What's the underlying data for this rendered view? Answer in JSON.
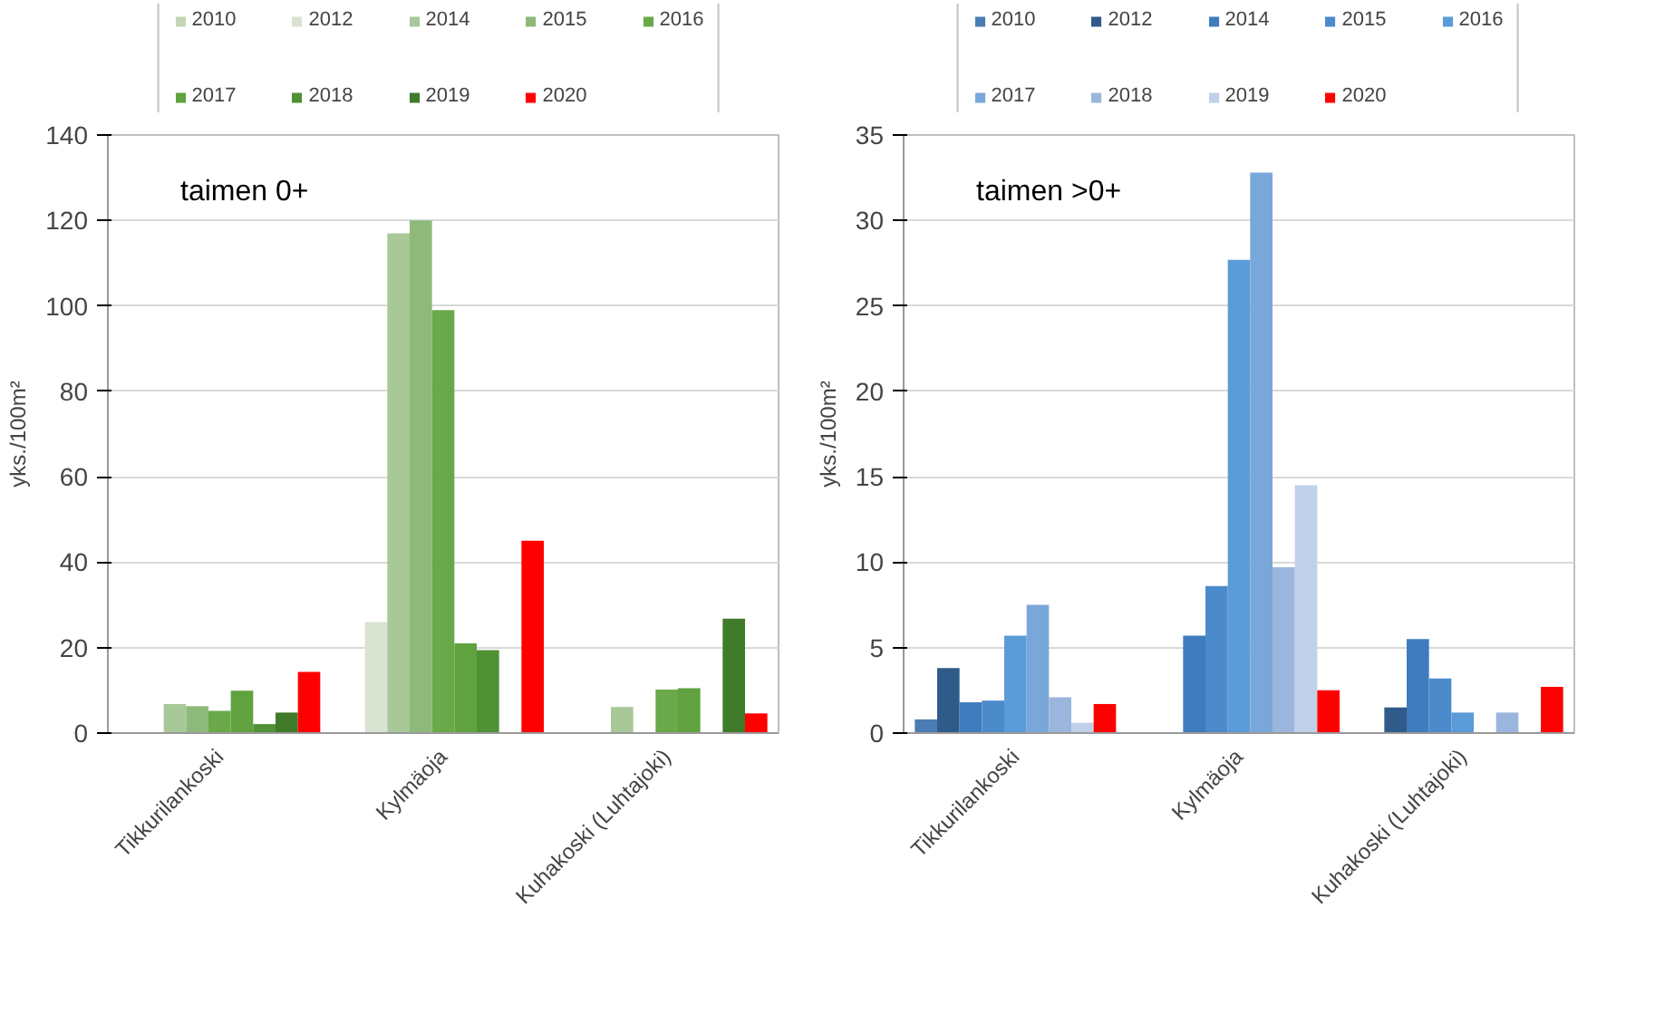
{
  "chart_data": [
    {
      "type": "bar",
      "ylabel": "yks./100m²",
      "annotations": [
        "taimen 0+"
      ],
      "categories": [
        "Tikkurilankoski",
        "Kylmäoja",
        "Kuhakoski (Luhtajoki)"
      ],
      "ylim": [
        0,
        140
      ],
      "yticks": [
        0,
        20,
        40,
        60,
        80,
        100,
        120,
        140
      ],
      "grid": "y",
      "legend": "top",
      "series": [
        {
          "name": "2010",
          "color": "#c3d6b5",
          "values": [
            null,
            null,
            null
          ]
        },
        {
          "name": "2012",
          "color": "#d9e3d2",
          "values": [
            null,
            26,
            null
          ]
        },
        {
          "name": "2014",
          "color": "#a8c898",
          "values": [
            6.8,
            117,
            6.1
          ]
        },
        {
          "name": "2015",
          "color": "#8dba7a",
          "values": [
            6.3,
            120,
            null
          ]
        },
        {
          "name": "2016",
          "color": "#6aa84a",
          "values": [
            5.2,
            99,
            10.2
          ]
        },
        {
          "name": "2017",
          "color": "#5fa23e",
          "values": [
            9.9,
            21,
            10.5
          ]
        },
        {
          "name": "2018",
          "color": "#4f9134",
          "values": [
            2.1,
            19.4,
            null
          ]
        },
        {
          "name": "2019",
          "color": "#407a2b",
          "values": [
            4.8,
            null,
            26.8
          ]
        },
        {
          "name": "2020",
          "color": "#ff0000",
          "values": [
            14.3,
            45,
            4.6
          ]
        }
      ]
    },
    {
      "type": "bar",
      "ylabel": "yks./100m²",
      "annotations": [
        "taimen >0+"
      ],
      "categories": [
        "Tikkurilankoski",
        "Kylmäoja",
        "Kuhakoski (Luhtajoki)"
      ],
      "ylim": [
        0,
        35
      ],
      "yticks": [
        0,
        5,
        10,
        15,
        20,
        25,
        30,
        35
      ],
      "grid": "y",
      "legend": "top",
      "series": [
        {
          "name": "2010",
          "color": "#4a7db3",
          "values": [
            0.8,
            null,
            null
          ]
        },
        {
          "name": "2012",
          "color": "#2f5b8a",
          "values": [
            3.8,
            null,
            1.5
          ]
        },
        {
          "name": "2014",
          "color": "#3f7cbd",
          "values": [
            1.8,
            5.7,
            5.5
          ]
        },
        {
          "name": "2015",
          "color": "#4c8bcb",
          "values": [
            1.9,
            8.6,
            3.2
          ]
        },
        {
          "name": "2016",
          "color": "#5b9bd8",
          "values": [
            5.7,
            27.7,
            1.2
          ]
        },
        {
          "name": "2017",
          "color": "#7aa7da",
          "values": [
            7.5,
            32.8,
            null
          ]
        },
        {
          "name": "2018",
          "color": "#9bb6dc",
          "values": [
            2.1,
            9.7,
            1.2
          ]
        },
        {
          "name": "2019",
          "color": "#c0d0e8",
          "values": [
            0.6,
            14.5,
            null
          ]
        },
        {
          "name": "2020",
          "color": "#ff0000",
          "values": [
            1.7,
            2.5,
            2.7
          ]
        }
      ]
    }
  ]
}
